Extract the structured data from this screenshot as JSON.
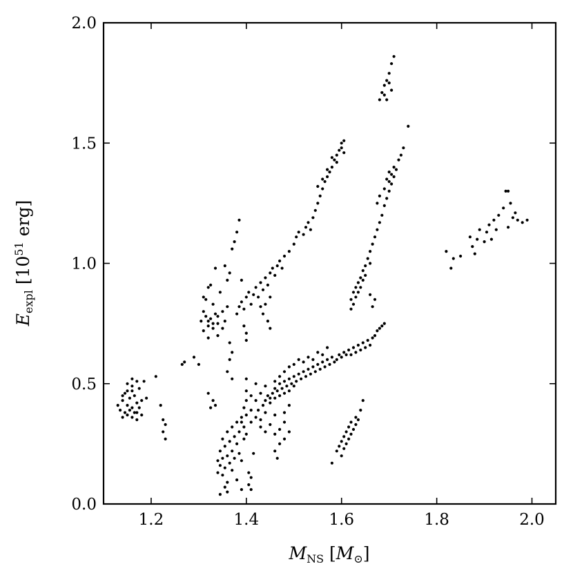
{
  "chart_data": {
    "type": "scatter",
    "title": "",
    "xlabel": {
      "main": "M",
      "sub": "NS",
      "unit_prefix": " [",
      "unit": "M",
      "unit_sub": "⊙",
      "unit_suffix": "]"
    },
    "ylabel": {
      "main": "E",
      "sub": "expl",
      "unit_prefix": " [10",
      "unit_sup": "51",
      "unit_suffix": " erg]"
    },
    "xlim": [
      1.1,
      2.05
    ],
    "ylim": [
      0.0,
      2.0
    ],
    "xticks": [
      "1.2",
      "1.4",
      "1.6",
      "1.8",
      "2.0"
    ],
    "yticks": [
      "0.0",
      "0.5",
      "1.0",
      "1.5",
      "2.0"
    ],
    "xtick_values": [
      1.2,
      1.4,
      1.6,
      1.8,
      2.0
    ],
    "ytick_values": [
      0.0,
      0.5,
      1.0,
      1.5,
      2.0
    ],
    "grid": false,
    "marker_color": "#000000",
    "points": [
      [
        1.13,
        0.41
      ],
      [
        1.135,
        0.39
      ],
      [
        1.14,
        0.36
      ],
      [
        1.14,
        0.43
      ],
      [
        1.145,
        0.46
      ],
      [
        1.145,
        0.38
      ],
      [
        1.15,
        0.5
      ],
      [
        1.15,
        0.41
      ],
      [
        1.15,
        0.37
      ],
      [
        1.155,
        0.44
      ],
      [
        1.155,
        0.39
      ],
      [
        1.16,
        0.52
      ],
      [
        1.16,
        0.47
      ],
      [
        1.16,
        0.4
      ],
      [
        1.16,
        0.36
      ],
      [
        1.165,
        0.45
      ],
      [
        1.165,
        0.38
      ],
      [
        1.17,
        0.51
      ],
      [
        1.17,
        0.42
      ],
      [
        1.17,
        0.35
      ],
      [
        1.175,
        0.48
      ],
      [
        1.175,
        0.4
      ],
      [
        1.18,
        0.43
      ],
      [
        1.18,
        0.37
      ],
      [
        1.185,
        0.51
      ],
      [
        1.19,
        0.44
      ],
      [
        1.14,
        0.45
      ],
      [
        1.15,
        0.47
      ],
      [
        1.16,
        0.49
      ],
      [
        1.17,
        0.38
      ],
      [
        1.21,
        0.53
      ],
      [
        1.22,
        0.41
      ],
      [
        1.225,
        0.35
      ],
      [
        1.225,
        0.3
      ],
      [
        1.23,
        0.27
      ],
      [
        1.23,
        0.33
      ],
      [
        1.265,
        0.58
      ],
      [
        1.27,
        0.59
      ],
      [
        1.29,
        0.61
      ],
      [
        1.3,
        0.58
      ],
      [
        1.305,
        0.76
      ],
      [
        1.31,
        0.8
      ],
      [
        1.31,
        0.72
      ],
      [
        1.315,
        0.85
      ],
      [
        1.315,
        0.78
      ],
      [
        1.32,
        0.74
      ],
      [
        1.32,
        0.69
      ],
      [
        1.32,
        0.9
      ],
      [
        1.325,
        0.77
      ],
      [
        1.33,
        0.83
      ],
      [
        1.33,
        0.73
      ],
      [
        1.335,
        0.98
      ],
      [
        1.335,
        0.79
      ],
      [
        1.34,
        0.75
      ],
      [
        1.34,
        0.7
      ],
      [
        1.345,
        0.88
      ],
      [
        1.35,
        0.8
      ],
      [
        1.35,
        0.73
      ],
      [
        1.355,
        0.76
      ],
      [
        1.36,
        0.82
      ],
      [
        1.365,
        0.67
      ],
      [
        1.365,
        0.6
      ],
      [
        1.37,
        0.63
      ],
      [
        1.36,
        0.55
      ],
      [
        1.37,
        0.52
      ],
      [
        1.31,
        0.86
      ],
      [
        1.32,
        0.76
      ],
      [
        1.325,
        0.91
      ],
      [
        1.33,
        0.75
      ],
      [
        1.34,
        0.78
      ],
      [
        1.33,
        0.43
      ],
      [
        1.335,
        0.41
      ],
      [
        1.325,
        0.4
      ],
      [
        1.32,
        0.46
      ],
      [
        1.34,
        0.18
      ],
      [
        1.34,
        0.13
      ],
      [
        1.345,
        0.22
      ],
      [
        1.345,
        0.16
      ],
      [
        1.35,
        0.27
      ],
      [
        1.35,
        0.19
      ],
      [
        1.35,
        0.12
      ],
      [
        1.355,
        0.24
      ],
      [
        1.355,
        0.15
      ],
      [
        1.355,
        0.07
      ],
      [
        1.36,
        0.3
      ],
      [
        1.36,
        0.2
      ],
      [
        1.36,
        0.09
      ],
      [
        1.36,
        0.05
      ],
      [
        1.365,
        0.26
      ],
      [
        1.365,
        0.17
      ],
      [
        1.37,
        0.32
      ],
      [
        1.37,
        0.22
      ],
      [
        1.37,
        0.14
      ],
      [
        1.375,
        0.28
      ],
      [
        1.375,
        0.19
      ],
      [
        1.38,
        0.34
      ],
      [
        1.38,
        0.25
      ],
      [
        1.385,
        0.3
      ],
      [
        1.385,
        0.21
      ],
      [
        1.39,
        0.34
      ],
      [
        1.39,
        0.18
      ],
      [
        1.395,
        0.27
      ],
      [
        1.395,
        0.32
      ],
      [
        1.4,
        0.37
      ],
      [
        1.4,
        0.29
      ],
      [
        1.405,
        0.13
      ],
      [
        1.405,
        0.08
      ],
      [
        1.41,
        0.11
      ],
      [
        1.41,
        0.06
      ],
      [
        1.415,
        0.21
      ],
      [
        1.38,
        0.1
      ],
      [
        1.39,
        0.06
      ],
      [
        1.345,
        0.04
      ],
      [
        1.38,
        0.79
      ],
      [
        1.385,
        0.82
      ],
      [
        1.39,
        0.84
      ],
      [
        1.395,
        0.81
      ],
      [
        1.4,
        0.86
      ],
      [
        1.405,
        0.88
      ],
      [
        1.41,
        0.83
      ],
      [
        1.415,
        0.87
      ],
      [
        1.42,
        0.9
      ],
      [
        1.425,
        0.86
      ],
      [
        1.43,
        0.92
      ],
      [
        1.435,
        0.89
      ],
      [
        1.44,
        0.94
      ],
      [
        1.445,
        0.91
      ],
      [
        1.45,
        0.96
      ],
      [
        1.455,
        0.98
      ],
      [
        1.46,
        0.95
      ],
      [
        1.465,
        0.99
      ],
      [
        1.47,
        1.01
      ],
      [
        1.475,
        0.98
      ],
      [
        1.48,
        1.03
      ],
      [
        1.49,
        1.05
      ],
      [
        1.5,
        1.08
      ],
      [
        1.505,
        1.11
      ],
      [
        1.51,
        1.13
      ],
      [
        1.52,
        1.12
      ],
      [
        1.525,
        1.15
      ],
      [
        1.53,
        1.17
      ],
      [
        1.535,
        1.14
      ],
      [
        1.54,
        1.19
      ],
      [
        1.545,
        1.22
      ],
      [
        1.55,
        1.25
      ],
      [
        1.555,
        1.28
      ],
      [
        1.56,
        1.31
      ],
      [
        1.565,
        1.34
      ],
      [
        1.57,
        1.36
      ],
      [
        1.575,
        1.38
      ],
      [
        1.58,
        1.4
      ],
      [
        1.585,
        1.43
      ],
      [
        1.59,
        1.45
      ],
      [
        1.595,
        1.47
      ],
      [
        1.6,
        1.48
      ],
      [
        1.6,
        1.5
      ],
      [
        1.605,
        1.51
      ],
      [
        1.605,
        1.46
      ],
      [
        1.59,
        1.42
      ],
      [
        1.58,
        1.44
      ],
      [
        1.57,
        1.39
      ],
      [
        1.56,
        1.35
      ],
      [
        1.55,
        1.32
      ],
      [
        1.37,
        1.06
      ],
      [
        1.375,
        1.09
      ],
      [
        1.38,
        1.13
      ],
      [
        1.385,
        1.18
      ],
      [
        1.39,
        0.93
      ],
      [
        1.395,
        0.74
      ],
      [
        1.4,
        0.71
      ],
      [
        1.4,
        0.68
      ],
      [
        1.43,
        0.82
      ],
      [
        1.435,
        0.79
      ],
      [
        1.44,
        0.83
      ],
      [
        1.445,
        0.76
      ],
      [
        1.45,
        0.86
      ],
      [
        1.45,
        0.73
      ],
      [
        1.36,
        0.93
      ],
      [
        1.365,
        0.96
      ],
      [
        1.355,
        0.99
      ],
      [
        1.62,
        0.81
      ],
      [
        1.62,
        0.85
      ],
      [
        1.625,
        0.88
      ],
      [
        1.625,
        0.83
      ],
      [
        1.63,
        0.9
      ],
      [
        1.63,
        0.86
      ],
      [
        1.635,
        0.92
      ],
      [
        1.635,
        0.88
      ],
      [
        1.64,
        0.94
      ],
      [
        1.64,
        0.9
      ],
      [
        1.645,
        0.97
      ],
      [
        1.645,
        0.93
      ],
      [
        1.65,
        0.99
      ],
      [
        1.65,
        0.95
      ],
      [
        1.655,
        1.02
      ],
      [
        1.66,
        1.05
      ],
      [
        1.66,
        1.0
      ],
      [
        1.665,
        1.08
      ],
      [
        1.67,
        1.11
      ],
      [
        1.675,
        1.14
      ],
      [
        1.68,
        1.17
      ],
      [
        1.685,
        1.2
      ],
      [
        1.69,
        1.24
      ],
      [
        1.695,
        1.27
      ],
      [
        1.7,
        1.3
      ],
      [
        1.7,
        1.34
      ],
      [
        1.705,
        1.33
      ],
      [
        1.705,
        1.37
      ],
      [
        1.71,
        1.36
      ],
      [
        1.71,
        1.4
      ],
      [
        1.715,
        1.39
      ],
      [
        1.72,
        1.43
      ],
      [
        1.725,
        1.45
      ],
      [
        1.73,
        1.48
      ],
      [
        1.69,
        1.31
      ],
      [
        1.695,
        1.35
      ],
      [
        1.7,
        1.38
      ],
      [
        1.68,
        1.28
      ],
      [
        1.675,
        1.25
      ],
      [
        1.68,
        1.68
      ],
      [
        1.685,
        1.71
      ],
      [
        1.69,
        1.74
      ],
      [
        1.69,
        1.7
      ],
      [
        1.695,
        1.76
      ],
      [
        1.7,
        1.79
      ],
      [
        1.7,
        1.75
      ],
      [
        1.705,
        1.83
      ],
      [
        1.71,
        1.86
      ],
      [
        1.705,
        1.72
      ],
      [
        1.695,
        1.68
      ],
      [
        1.66,
        0.87
      ],
      [
        1.665,
        0.82
      ],
      [
        1.67,
        0.85
      ],
      [
        1.74,
        1.57
      ],
      [
        1.82,
        1.05
      ],
      [
        1.83,
        0.98
      ],
      [
        1.835,
        1.02
      ],
      [
        1.85,
        1.03
      ],
      [
        1.87,
        1.11
      ],
      [
        1.875,
        1.07
      ],
      [
        1.88,
        1.04
      ],
      [
        1.885,
        1.1
      ],
      [
        1.89,
        1.14
      ],
      [
        1.9,
        1.09
      ],
      [
        1.905,
        1.13
      ],
      [
        1.91,
        1.16
      ],
      [
        1.915,
        1.1
      ],
      [
        1.92,
        1.18
      ],
      [
        1.925,
        1.14
      ],
      [
        1.93,
        1.2
      ],
      [
        1.94,
        1.23
      ],
      [
        1.945,
        1.3
      ],
      [
        1.95,
        1.3
      ],
      [
        1.955,
        1.25
      ],
      [
        1.96,
        1.19
      ],
      [
        1.965,
        1.21
      ],
      [
        1.97,
        1.18
      ],
      [
        1.98,
        1.17
      ],
      [
        1.99,
        1.18
      ],
      [
        1.95,
        1.15
      ],
      [
        1.41,
        0.34
      ],
      [
        1.42,
        0.36
      ],
      [
        1.425,
        0.39
      ],
      [
        1.43,
        0.35
      ],
      [
        1.435,
        0.41
      ],
      [
        1.44,
        0.38
      ],
      [
        1.44,
        0.43
      ],
      [
        1.445,
        0.45
      ],
      [
        1.45,
        0.42
      ],
      [
        1.455,
        0.46
      ],
      [
        1.46,
        0.44
      ],
      [
        1.46,
        0.48
      ],
      [
        1.465,
        0.47
      ],
      [
        1.47,
        0.45
      ],
      [
        1.47,
        0.5
      ],
      [
        1.475,
        0.48
      ],
      [
        1.48,
        0.46
      ],
      [
        1.48,
        0.51
      ],
      [
        1.485,
        0.49
      ],
      [
        1.49,
        0.47
      ],
      [
        1.49,
        0.52
      ],
      [
        1.495,
        0.5
      ],
      [
        1.5,
        0.53
      ],
      [
        1.5,
        0.49
      ],
      [
        1.505,
        0.51
      ],
      [
        1.51,
        0.54
      ],
      [
        1.515,
        0.52
      ],
      [
        1.52,
        0.55
      ],
      [
        1.525,
        0.53
      ],
      [
        1.53,
        0.56
      ],
      [
        1.535,
        0.54
      ],
      [
        1.54,
        0.57
      ],
      [
        1.545,
        0.55
      ],
      [
        1.55,
        0.58
      ],
      [
        1.555,
        0.56
      ],
      [
        1.56,
        0.59
      ],
      [
        1.565,
        0.57
      ],
      [
        1.57,
        0.6
      ],
      [
        1.575,
        0.58
      ],
      [
        1.58,
        0.61
      ],
      [
        1.585,
        0.59
      ],
      [
        1.59,
        0.6
      ],
      [
        1.595,
        0.62
      ],
      [
        1.6,
        0.61
      ],
      [
        1.605,
        0.63
      ],
      [
        1.61,
        0.62
      ],
      [
        1.615,
        0.64
      ],
      [
        1.62,
        0.62
      ],
      [
        1.625,
        0.65
      ],
      [
        1.63,
        0.63
      ],
      [
        1.635,
        0.66
      ],
      [
        1.64,
        0.64
      ],
      [
        1.645,
        0.67
      ],
      [
        1.65,
        0.65
      ],
      [
        1.655,
        0.68
      ],
      [
        1.66,
        0.66
      ],
      [
        1.665,
        0.69
      ],
      [
        1.67,
        0.7
      ],
      [
        1.675,
        0.72
      ],
      [
        1.68,
        0.73
      ],
      [
        1.685,
        0.74
      ],
      [
        1.69,
        0.75
      ],
      [
        1.42,
        0.43
      ],
      [
        1.43,
        0.46
      ],
      [
        1.44,
        0.49
      ],
      [
        1.45,
        0.44
      ],
      [
        1.46,
        0.51
      ],
      [
        1.47,
        0.53
      ],
      [
        1.48,
        0.55
      ],
      [
        1.49,
        0.57
      ],
      [
        1.5,
        0.58
      ],
      [
        1.51,
        0.6
      ],
      [
        1.52,
        0.59
      ],
      [
        1.53,
        0.61
      ],
      [
        1.54,
        0.6
      ],
      [
        1.55,
        0.63
      ],
      [
        1.56,
        0.62
      ],
      [
        1.57,
        0.65
      ],
      [
        1.4,
        0.47
      ],
      [
        1.41,
        0.45
      ],
      [
        1.4,
        0.52
      ],
      [
        1.42,
        0.5
      ],
      [
        1.41,
        0.39
      ],
      [
        1.43,
        0.32
      ],
      [
        1.44,
        0.3
      ],
      [
        1.45,
        0.33
      ],
      [
        1.46,
        0.29
      ],
      [
        1.47,
        0.31
      ],
      [
        1.48,
        0.34
      ],
      [
        1.46,
        0.37
      ],
      [
        1.48,
        0.38
      ],
      [
        1.49,
        0.41
      ],
      [
        1.39,
        0.36
      ],
      [
        1.395,
        0.4
      ],
      [
        1.4,
        0.43
      ],
      [
        1.58,
        0.17
      ],
      [
        1.59,
        0.22
      ],
      [
        1.595,
        0.24
      ],
      [
        1.6,
        0.2
      ],
      [
        1.6,
        0.26
      ],
      [
        1.605,
        0.28
      ],
      [
        1.605,
        0.23
      ],
      [
        1.61,
        0.25
      ],
      [
        1.61,
        0.3
      ],
      [
        1.615,
        0.27
      ],
      [
        1.615,
        0.32
      ],
      [
        1.62,
        0.29
      ],
      [
        1.62,
        0.34
      ],
      [
        1.625,
        0.31
      ],
      [
        1.63,
        0.33
      ],
      [
        1.63,
        0.36
      ],
      [
        1.635,
        0.35
      ],
      [
        1.64,
        0.39
      ],
      [
        1.645,
        0.43
      ],
      [
        1.46,
        0.22
      ],
      [
        1.465,
        0.19
      ],
      [
        1.47,
        0.25
      ],
      [
        1.48,
        0.27
      ],
      [
        1.49,
        0.3
      ]
    ]
  }
}
